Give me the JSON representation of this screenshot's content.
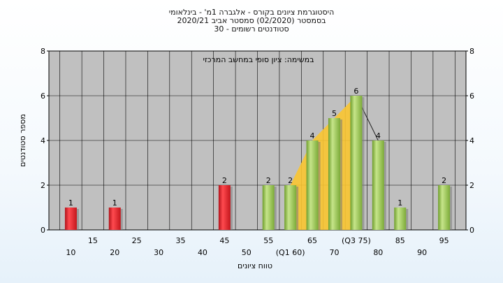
{
  "header": {
    "line1": "היסטוגרמת ציונים בקורס - אלגברה 1מ' - בינלאומי",
    "line2": "בסמסטר  (02/2020)  סמסטר אביב 2020/21",
    "line3": "סטודנטים רשומים - 30"
  },
  "colors": {
    "plot_bg": "#c0c0c0",
    "red_bar": "#e8232a",
    "green_bar": "#9ccc5a",
    "area_fill": "#f9c531"
  },
  "chart_data": {
    "type": "bar",
    "title": "היסטוגרמת ציונים בקורס - אלגברה 1מ' - בינלאומי",
    "annotation": "במשימה: ציון סופי במחשב המרכזי",
    "xlabel": "טווח ציונים",
    "ylabel": "מספר סטודנטים",
    "ylim": [
      0,
      8
    ],
    "yticks": [
      0,
      2,
      4,
      6,
      8
    ],
    "grid": true,
    "categories": [
      "10",
      "15",
      "20",
      "25",
      "30",
      "35",
      "40",
      "45",
      "50",
      "55",
      "(Q1 60)",
      "65",
      "70",
      "(Q3 75)",
      "80",
      "85",
      "90",
      "95"
    ],
    "values": [
      1,
      0,
      1,
      0,
      0,
      0,
      0,
      2,
      0,
      2,
      2,
      4,
      5,
      6,
      4,
      1,
      0,
      2
    ],
    "bar_colors": [
      "red",
      "red",
      "red",
      "red",
      "red",
      "red",
      "red",
      "red",
      "green",
      "green",
      "green",
      "green",
      "green",
      "green",
      "green",
      "green",
      "green",
      "green"
    ],
    "interquartile_area": {
      "from": "(Q1 60)",
      "to": "(Q3 75)"
    }
  }
}
